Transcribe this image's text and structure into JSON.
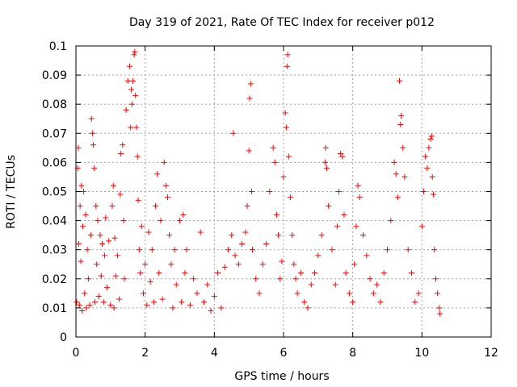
{
  "chart_data": {
    "type": "scatter",
    "title": "Day 319 of 2021, Rate Of TEC Index for receiver p012",
    "xlabel": "GPS time / hours",
    "ylabel": "ROTI / TECUs",
    "xlim": [
      0,
      12
    ],
    "ylim": [
      0,
      0.1
    ],
    "x_ticks": [
      "0",
      "2",
      "4",
      "6",
      "8",
      "10",
      "12"
    ],
    "y_ticks": [
      "0",
      "0.01",
      "0.02",
      "0.03",
      "0.04",
      "0.05",
      "0.06",
      "0.07",
      "0.08",
      "0.09",
      "0.1"
    ],
    "grid": true,
    "marker": "+",
    "colors": {
      "points": "#ff0000",
      "axes": "#000000",
      "grid": "#a0a0a0"
    },
    "series": [
      {
        "points": [
          [
            0.02,
            0.012
          ],
          [
            0.05,
            0.058
          ],
          [
            0.07,
            0.065
          ],
          [
            0.08,
            0.032
          ],
          [
            0.1,
            0.011
          ],
          [
            0.12,
            0.045
          ],
          [
            0.14,
            0.026
          ],
          [
            0.16,
            0.052
          ],
          [
            0.18,
            0.009
          ],
          [
            0.2,
            0.038
          ],
          [
            0.22,
            0.05
          ],
          [
            0.25,
            0.015
          ],
          [
            0.28,
            0.042
          ],
          [
            0.3,
            0.01
          ],
          [
            0.33,
            0.03
          ],
          [
            0.36,
            0.02
          ],
          [
            0.4,
            0.011
          ],
          [
            0.43,
            0.035
          ],
          [
            0.45,
            0.075
          ],
          [
            0.48,
            0.07
          ],
          [
            0.5,
            0.066
          ],
          [
            0.53,
            0.058
          ],
          [
            0.55,
            0.012
          ],
          [
            0.58,
            0.045
          ],
          [
            0.6,
            0.025
          ],
          [
            0.63,
            0.04
          ],
          [
            0.66,
            0.014
          ],
          [
            0.7,
            0.035
          ],
          [
            0.73,
            0.021
          ],
          [
            0.76,
            0.032
          ],
          [
            0.8,
            0.012
          ],
          [
            0.83,
            0.028
          ],
          [
            0.86,
            0.041
          ],
          [
            0.9,
            0.017
          ],
          [
            0.95,
            0.033
          ],
          [
            1.0,
            0.011
          ],
          [
            1.05,
            0.045
          ],
          [
            1.08,
            0.052
          ],
          [
            1.1,
            0.01
          ],
          [
            1.12,
            0.034
          ],
          [
            1.15,
            0.021
          ],
          [
            1.2,
            0.028
          ],
          [
            1.25,
            0.013
          ],
          [
            1.28,
            0.049
          ],
          [
            1.3,
            0.063
          ],
          [
            1.35,
            0.066
          ],
          [
            1.38,
            0.04
          ],
          [
            1.4,
            0.02
          ],
          [
            1.45,
            0.078
          ],
          [
            1.5,
            0.088
          ],
          [
            1.55,
            0.093
          ],
          [
            1.58,
            0.072
          ],
          [
            1.6,
            0.085
          ],
          [
            1.62,
            0.08
          ],
          [
            1.65,
            0.088
          ],
          [
            1.68,
            0.097
          ],
          [
            1.7,
            0.098
          ],
          [
            1.72,
            0.083
          ],
          [
            1.75,
            0.072
          ],
          [
            1.78,
            0.062
          ],
          [
            1.8,
            0.047
          ],
          [
            1.83,
            0.03
          ],
          [
            1.86,
            0.022
          ],
          [
            1.9,
            0.038
          ],
          [
            1.95,
            0.015
          ],
          [
            2.0,
            0.025
          ],
          [
            2.05,
            0.011
          ],
          [
            2.1,
            0.036
          ],
          [
            2.15,
            0.019
          ],
          [
            2.2,
            0.03
          ],
          [
            2.25,
            0.012
          ],
          [
            2.3,
            0.045
          ],
          [
            2.35,
            0.056
          ],
          [
            2.4,
            0.022
          ],
          [
            2.45,
            0.04
          ],
          [
            2.5,
            0.013
          ],
          [
            2.55,
            0.06
          ],
          [
            2.6,
            0.052
          ],
          [
            2.65,
            0.048
          ],
          [
            2.7,
            0.035
          ],
          [
            2.75,
            0.025
          ],
          [
            2.8,
            0.01
          ],
          [
            2.85,
            0.03
          ],
          [
            2.9,
            0.018
          ],
          [
            3.0,
            0.04
          ],
          [
            3.05,
            0.012
          ],
          [
            3.1,
            0.042
          ],
          [
            3.15,
            0.022
          ],
          [
            3.2,
            0.03
          ],
          [
            3.3,
            0.011
          ],
          [
            3.4,
            0.02
          ],
          [
            3.5,
            0.015
          ],
          [
            3.6,
            0.036
          ],
          [
            3.7,
            0.012
          ],
          [
            3.8,
            0.018
          ],
          [
            3.9,
            0.009
          ],
          [
            4.0,
            0.014
          ],
          [
            4.1,
            0.022
          ],
          [
            4.2,
            0.01
          ],
          [
            4.3,
            0.024
          ],
          [
            4.4,
            0.03
          ],
          [
            4.5,
            0.035
          ],
          [
            4.55,
            0.07
          ],
          [
            4.6,
            0.028
          ],
          [
            4.7,
            0.025
          ],
          [
            4.8,
            0.032
          ],
          [
            4.9,
            0.036
          ],
          [
            4.95,
            0.045
          ],
          [
            5.0,
            0.064
          ],
          [
            5.02,
            0.082
          ],
          [
            5.05,
            0.087
          ],
          [
            5.08,
            0.05
          ],
          [
            5.1,
            0.03
          ],
          [
            5.2,
            0.02
          ],
          [
            5.3,
            0.015
          ],
          [
            5.4,
            0.025
          ],
          [
            5.5,
            0.032
          ],
          [
            5.6,
            0.05
          ],
          [
            5.7,
            0.065
          ],
          [
            5.75,
            0.06
          ],
          [
            5.8,
            0.042
          ],
          [
            5.85,
            0.035
          ],
          [
            5.9,
            0.02
          ],
          [
            5.95,
            0.026
          ],
          [
            6.0,
            0.055
          ],
          [
            6.05,
            0.077
          ],
          [
            6.08,
            0.072
          ],
          [
            6.1,
            0.093
          ],
          [
            6.12,
            0.097
          ],
          [
            6.15,
            0.062
          ],
          [
            6.2,
            0.048
          ],
          [
            6.25,
            0.035
          ],
          [
            6.3,
            0.025
          ],
          [
            6.35,
            0.02
          ],
          [
            6.4,
            0.015
          ],
          [
            6.5,
            0.022
          ],
          [
            6.6,
            0.012
          ],
          [
            6.7,
            0.01
          ],
          [
            6.8,
            0.018
          ],
          [
            6.9,
            0.022
          ],
          [
            7.0,
            0.028
          ],
          [
            7.1,
            0.035
          ],
          [
            7.2,
            0.06
          ],
          [
            7.22,
            0.065
          ],
          [
            7.25,
            0.058
          ],
          [
            7.3,
            0.045
          ],
          [
            7.4,
            0.03
          ],
          [
            7.5,
            0.018
          ],
          [
            7.55,
            0.038
          ],
          [
            7.6,
            0.05
          ],
          [
            7.65,
            0.063
          ],
          [
            7.7,
            0.062
          ],
          [
            7.75,
            0.042
          ],
          [
            7.8,
            0.022
          ],
          [
            7.9,
            0.015
          ],
          [
            8.0,
            0.012
          ],
          [
            8.05,
            0.025
          ],
          [
            8.1,
            0.038
          ],
          [
            8.15,
            0.052
          ],
          [
            8.2,
            0.048
          ],
          [
            8.3,
            0.035
          ],
          [
            8.4,
            0.028
          ],
          [
            8.5,
            0.02
          ],
          [
            8.6,
            0.015
          ],
          [
            8.7,
            0.018
          ],
          [
            8.8,
            0.012
          ],
          [
            8.9,
            0.022
          ],
          [
            9.0,
            0.03
          ],
          [
            9.1,
            0.04
          ],
          [
            9.2,
            0.06
          ],
          [
            9.25,
            0.056
          ],
          [
            9.3,
            0.048
          ],
          [
            9.35,
            0.088
          ],
          [
            9.38,
            0.073
          ],
          [
            9.4,
            0.076
          ],
          [
            9.45,
            0.065
          ],
          [
            9.5,
            0.055
          ],
          [
            9.6,
            0.03
          ],
          [
            9.7,
            0.022
          ],
          [
            9.8,
            0.012
          ],
          [
            9.9,
            0.015
          ],
          [
            10.0,
            0.038
          ],
          [
            10.05,
            0.05
          ],
          [
            10.1,
            0.062
          ],
          [
            10.15,
            0.058
          ],
          [
            10.2,
            0.065
          ],
          [
            10.25,
            0.068
          ],
          [
            10.28,
            0.069
          ],
          [
            10.3,
            0.055
          ],
          [
            10.33,
            0.049
          ],
          [
            10.36,
            0.03
          ],
          [
            10.4,
            0.02
          ],
          [
            10.45,
            0.015
          ],
          [
            10.5,
            0.01
          ],
          [
            10.52,
            0.008
          ]
        ]
      }
    ]
  }
}
